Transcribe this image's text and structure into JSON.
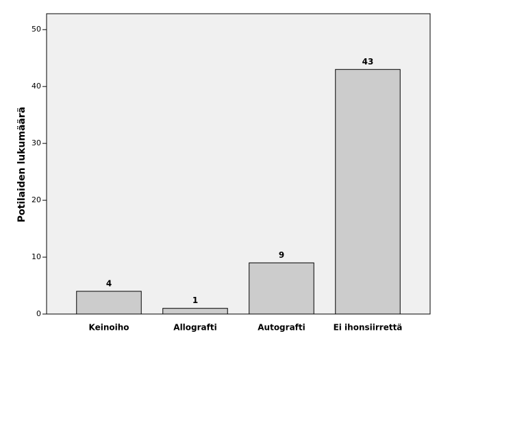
{
  "chart_data": {
    "type": "bar",
    "y_label": "Potilaiden lukumäärä",
    "categories": [
      "Keinoiho",
      "Allografti",
      "Autografti",
      "Ei ihonsiirrettä"
    ],
    "values": [
      4,
      1,
      9,
      43
    ],
    "color": "#cccccc",
    "ylim": [
      0,
      52.8
    ],
    "yticks": [
      0,
      10,
      20,
      30,
      40,
      50
    ],
    "grid": false
  }
}
